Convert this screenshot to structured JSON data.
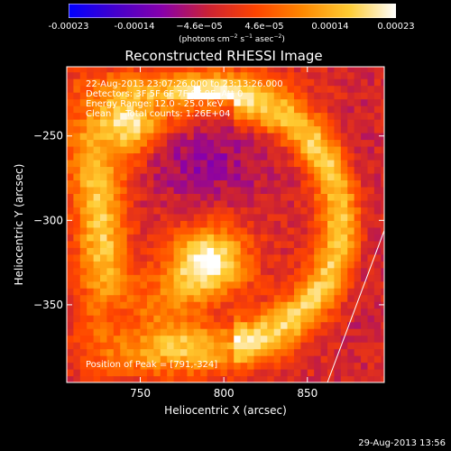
{
  "colorbar": {
    "ticks": [
      "-0.00023",
      "-0.00014",
      "−4.6e−05",
      "4.6e−05",
      "0.00014",
      "0.00023"
    ],
    "tick_values": [
      -0.00023,
      -0.00014,
      -4.6e-05,
      4.6e-05,
      0.00014,
      0.00023
    ],
    "unit_prefix": "(photons cm",
    "unit_exp1": "−2",
    "unit_mid": " s",
    "unit_exp2": "−1",
    "unit_mid2": " asec",
    "unit_exp3": "−2",
    "unit_suffix": ")",
    "range": [
      -0.00023,
      0.00023
    ],
    "colormap_stops": [
      "#0000ff",
      "#4400cc",
      "#8800aa",
      "#cc2233",
      "#ff4400",
      "#ff8800",
      "#ffcc33",
      "#ffffff"
    ]
  },
  "chart_data": {
    "type": "heatmap",
    "title": "Reconstructed RHESSI Image",
    "xlabel": "Heliocentric X (arcsec)",
    "ylabel": "Heliocentric Y (arcsec)",
    "xlim": [
      706,
      896
    ],
    "ylim": [
      -396,
      -209
    ],
    "x_ticks": [
      750,
      800,
      850
    ],
    "y_ticks": [
      -250,
      -300,
      -350
    ],
    "x_tick_labels": [
      "750",
      "800",
      "850"
    ],
    "y_tick_labels": [
      "−250",
      "−300",
      "−350"
    ],
    "annotations": [
      "22-Aug-2013 23:07:26.000 to 23:13:26.000",
      "Detectors: 3F 5F 6F 7F 8F 9F, Att 0",
      "Energy Range: 12.0 - 25.0 keV",
      "Clean     Total counts: 1.26E+04"
    ],
    "peak_label": "Position of Peak = [791,-324]",
    "peak": [
      791,
      -324
    ],
    "limb_line": [
      [
        862,
        -396
      ],
      [
        896,
        -306
      ]
    ]
  },
  "footer": {
    "date": "29-Aug-2013 13:56"
  }
}
